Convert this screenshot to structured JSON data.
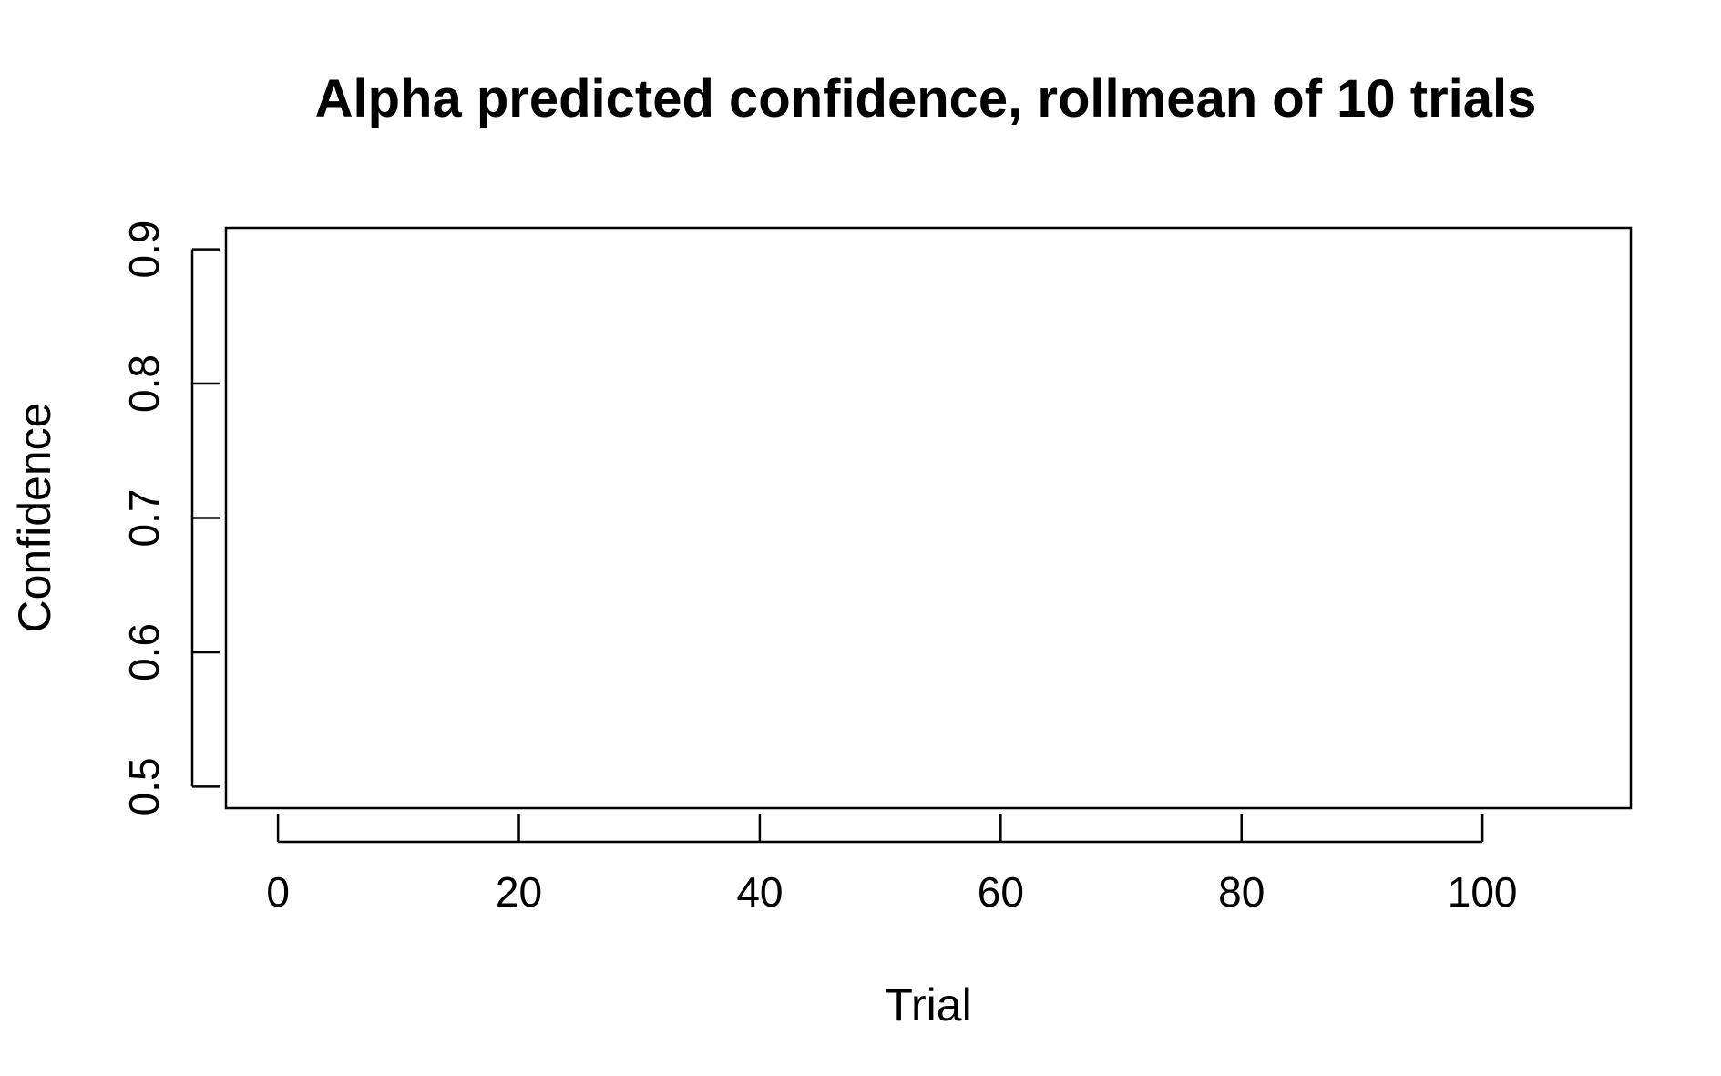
{
  "chart_data": {
    "type": "line",
    "title": "Alpha predicted confidence, rollmean of  10 trials",
    "xlabel": "Trial",
    "ylabel": "Confidence",
    "xlim": [
      -4.32,
      112.32
    ],
    "ylim": [
      0.484,
      0.916
    ],
    "x_ticks": [
      0,
      20,
      40,
      60,
      80,
      100
    ],
    "x_tick_labels": [
      "0",
      "20",
      "40",
      "60",
      "80",
      "100"
    ],
    "y_ticks": [
      0.5,
      0.6,
      0.7,
      0.8,
      0.9
    ],
    "y_tick_labels": [
      "0.5",
      "0.6",
      "0.7",
      "0.8",
      "0.9"
    ],
    "grid": false,
    "series": []
  }
}
